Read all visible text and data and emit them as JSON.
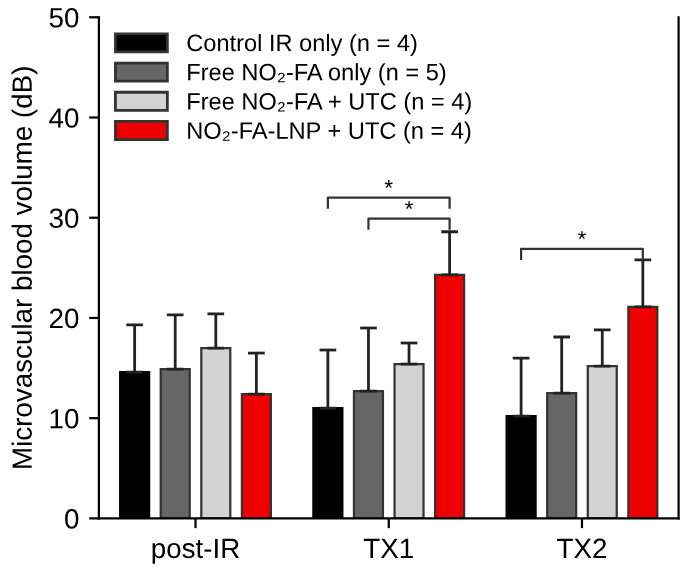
{
  "chart_data": {
    "type": "bar",
    "ylabel": "Microvascular blood volume (dB)",
    "categories": [
      "post-IR",
      "TX1",
      "TX2"
    ],
    "series": [
      {
        "name": "Control IR only (n = 4)",
        "color": "#000000",
        "values": [
          14.6,
          11.0,
          10.2
        ],
        "errors": [
          [
            14.6,
            19.3
          ],
          [
            11.0,
            16.8
          ],
          [
            10.2,
            16.0
          ]
        ]
      },
      {
        "name": "Free NO₂-FA only (n = 5)",
        "color": "#666666",
        "values": [
          14.9,
          12.7,
          12.5
        ],
        "errors": [
          [
            14.9,
            20.3
          ],
          [
            12.7,
            19.0
          ],
          [
            12.5,
            18.1
          ]
        ]
      },
      {
        "name": "Free NO₂-FA + UTC (n = 4)",
        "color": "#d3d3d3",
        "values": [
          17.0,
          15.4,
          15.2
        ],
        "errors": [
          [
            17.0,
            20.4
          ],
          [
            15.4,
            17.5
          ],
          [
            15.2,
            18.8
          ]
        ]
      },
      {
        "name": "NO₂-FA-LNP + UTC (n = 4)",
        "color": "#ee0000",
        "values": [
          12.4,
          24.3,
          21.1
        ],
        "errors": [
          [
            12.4,
            16.5
          ],
          [
            24.3,
            28.6
          ],
          [
            21.1,
            25.8
          ]
        ]
      }
    ],
    "ylim": [
      0,
      50
    ],
    "yticks": [
      0,
      10,
      20,
      30,
      40,
      50
    ],
    "grid": false,
    "legend": "top left",
    "annotations": [
      "*",
      "*",
      "*"
    ]
  }
}
